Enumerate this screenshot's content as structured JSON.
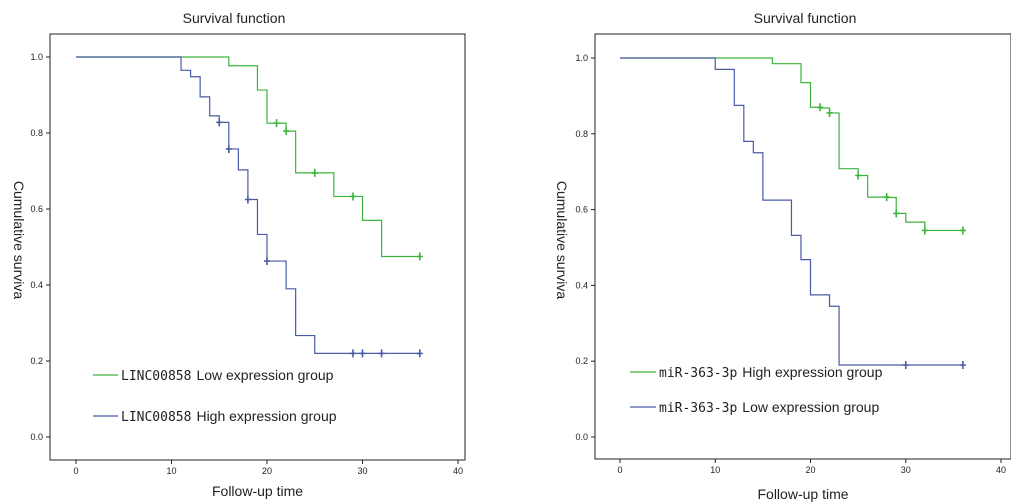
{
  "colors": {
    "green": "#3cb43c",
    "blue": "#4a5ba6",
    "axis": "#222222"
  },
  "chart_data": [
    {
      "type": "line",
      "subtype": "kaplan-meier",
      "title": "Survival function",
      "xlabel": "Follow-up time",
      "ylabel": "Cumulative surviva",
      "xlim": [
        0,
        40
      ],
      "ylim": [
        0,
        1.0
      ],
      "xticks": [
        "0",
        "10",
        "20",
        "30",
        "40"
      ],
      "yticks": [
        "0.0",
        "0.2",
        "0.4",
        "0.6",
        "0.8",
        "1.0"
      ],
      "grid": false,
      "legend_position": "bottom-left",
      "series": [
        {
          "name": "LINC00858 Low expression group",
          "name_parts": [
            "LINC00858",
            "Low expression group"
          ],
          "color": "#3cb43c",
          "x": [
            0,
            16,
            19,
            20,
            22,
            23,
            27,
            30,
            32,
            36
          ],
          "y": [
            1.0,
            0.977,
            0.913,
            0.826,
            0.805,
            0.695,
            0.633,
            0.57,
            0.475,
            0.475
          ],
          "censored": [
            [
              21,
              0.826
            ],
            [
              22,
              0.805
            ],
            [
              25,
              0.695
            ],
            [
              29,
              0.633
            ],
            [
              36,
              0.475
            ]
          ]
        },
        {
          "name": "LINC00858 High expression group",
          "name_parts": [
            "LINC00858",
            "High expression group"
          ],
          "color": "#4a5ba6",
          "x": [
            0,
            11,
            12,
            13,
            14,
            15,
            16,
            17,
            18,
            19,
            20,
            22,
            23,
            25,
            36
          ],
          "y": [
            1.0,
            0.965,
            0.948,
            0.895,
            0.845,
            0.828,
            0.758,
            0.703,
            0.625,
            0.533,
            0.463,
            0.39,
            0.267,
            0.22,
            0.22
          ],
          "censored": [
            [
              15,
              0.828
            ],
            [
              16,
              0.758
            ],
            [
              18,
              0.625
            ],
            [
              20,
              0.463
            ],
            [
              29,
              0.22
            ],
            [
              30,
              0.22
            ],
            [
              32,
              0.22
            ],
            [
              36,
              0.22
            ]
          ]
        }
      ]
    },
    {
      "type": "line",
      "subtype": "kaplan-meier",
      "title": "Survival function",
      "xlabel": "Follow-up time",
      "ylabel": "Cumulative surviva",
      "xlim": [
        0,
        40
      ],
      "ylim": [
        0,
        1.0
      ],
      "xticks": [
        "0",
        "10",
        "20",
        "30",
        "40"
      ],
      "yticks": [
        "0.0",
        "0.2",
        "0.4",
        "0.6",
        "0.8",
        "1.0"
      ],
      "grid": false,
      "legend_position": "bottom-left",
      "series": [
        {
          "name": "miR-363-3p High expression group",
          "name_parts": [
            "miR-363-3p",
            "High expression group"
          ],
          "color": "#3cb43c",
          "x": [
            0,
            16,
            19,
            20,
            21,
            22,
            23,
            25,
            26,
            28,
            29,
            30,
            32,
            36
          ],
          "y": [
            1.0,
            0.985,
            0.935,
            0.87,
            0.868,
            0.855,
            0.708,
            0.69,
            0.633,
            0.632,
            0.59,
            0.567,
            0.545,
            0.545
          ],
          "censored": [
            [
              21,
              0.87
            ],
            [
              22,
              0.855
            ],
            [
              25,
              0.69
            ],
            [
              28,
              0.633
            ],
            [
              29,
              0.59
            ],
            [
              32,
              0.545
            ],
            [
              36,
              0.545
            ]
          ]
        },
        {
          "name": "miR-363-3p Low expression group",
          "name_parts": [
            "miR-363-3p",
            "Low expression group"
          ],
          "color": "#4a5ba6",
          "x": [
            0,
            10,
            12,
            13,
            14,
            15,
            16,
            18,
            19,
            20,
            22,
            23,
            36
          ],
          "y": [
            1.0,
            0.97,
            0.875,
            0.78,
            0.75,
            0.625,
            0.625,
            0.532,
            0.468,
            0.375,
            0.345,
            0.19,
            0.19
          ],
          "censored": [
            [
              30,
              0.19
            ],
            [
              36,
              0.19
            ]
          ]
        }
      ]
    }
  ]
}
